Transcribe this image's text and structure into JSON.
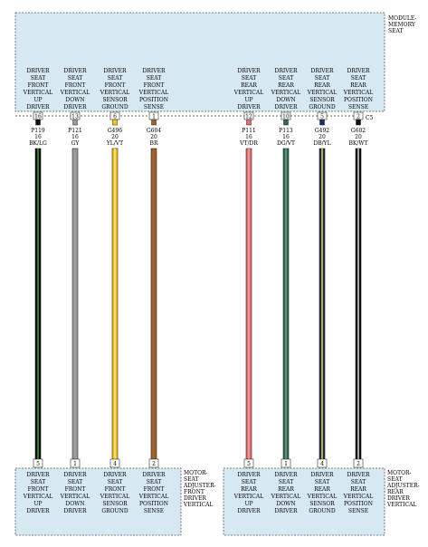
{
  "module": {
    "name_line1": "MODULE-",
    "name_line2": "MEMORY",
    "name_line3": "SEAT",
    "connector": "C5",
    "pins_left": [
      {
        "pin": "16",
        "lines": [
          "DRIVER",
          "SEAT",
          "FRONT",
          "VERTICAL",
          "UP",
          "DRIVER"
        ]
      },
      {
        "pin": "13",
        "lines": [
          "DRIVER",
          "SEAT",
          "FRONT",
          "VERTICAL",
          "DOWN",
          "DRIVER"
        ]
      },
      {
        "pin": "6",
        "lines": [
          "DRIVER",
          "SEAT",
          "FRONT",
          "VERTICAL",
          "SENSOR",
          "GROUND"
        ]
      },
      {
        "pin": "1",
        "lines": [
          "DRIVER",
          "SEAT",
          "FRONT",
          "VERTICAL",
          "POSITION",
          "SENSE"
        ]
      }
    ],
    "pins_right": [
      {
        "pin": "12",
        "lines": [
          "DRIVER",
          "SEAT",
          "REAR",
          "VERTICAL",
          "UP",
          "DRIVER"
        ]
      },
      {
        "pin": "10",
        "lines": [
          "DRIVER",
          "SEAT",
          "REAR",
          "VERTICAL",
          "DOWN",
          "DRIVER"
        ]
      },
      {
        "pin": "5",
        "lines": [
          "DRIVER",
          "SEAT",
          "REAR",
          "VERTICAL",
          "SENSOR",
          "GROUND"
        ]
      },
      {
        "pin": "2",
        "lines": [
          "DRIVER",
          "SEAT",
          "REAR",
          "VERTICAL",
          "POSITION",
          "SENSE"
        ]
      }
    ]
  },
  "wires": [
    {
      "circuit": "P119",
      "gauge": "16",
      "color_code": "BK/LG",
      "base": "#111111",
      "stripe": "#3a9a3a"
    },
    {
      "circuit": "P121",
      "gauge": "16",
      "color_code": "GY",
      "base": "#9a9a9a",
      "stripe": "#9a9a9a"
    },
    {
      "circuit": "G496",
      "gauge": "20",
      "color_code": "YL/VT",
      "base": "#f2c21a",
      "stripe": "#f6e08a"
    },
    {
      "circuit": "G604",
      "gauge": "20",
      "color_code": "BR",
      "base": "#a0622a",
      "stripe": "#a0622a"
    },
    {
      "circuit": "P111",
      "gauge": "16",
      "color_code": "VT/DR",
      "base": "#e07070",
      "stripe": "#f0a0a0"
    },
    {
      "circuit": "P113",
      "gauge": "16",
      "color_code": "DG/VT",
      "base": "#2f6b50",
      "stripe": "#6a9a86"
    },
    {
      "circuit": "G492",
      "gauge": "20",
      "color_code": "DB/YL",
      "base": "#1b2f6b",
      "stripe": "#f2c21a"
    },
    {
      "circuit": "G602",
      "gauge": "20",
      "color_code": "BK/WT",
      "base": "#111111",
      "stripe": "#cccccc"
    }
  ],
  "motor_front": {
    "name_lines": [
      "MOTOR-",
      "SEAT",
      "ADJUSTER-",
      "FRONT",
      "DRIVER",
      "VERTICAL"
    ],
    "pins": [
      {
        "pin": "5",
        "lines": [
          "DRIVER",
          "SEAT",
          "FRONT",
          "VERTICAL",
          "UP",
          "DRIVER"
        ]
      },
      {
        "pin": "1",
        "lines": [
          "DRIVER",
          "SEAT",
          "FRONT",
          "VERTICAL",
          "DOWN",
          "DRIVER"
        ]
      },
      {
        "pin": "4",
        "lines": [
          "DRIVER",
          "SEAT",
          "FRONT",
          "VERTICAL",
          "SENSOR",
          "GROUND"
        ]
      },
      {
        "pin": "2",
        "lines": [
          "DRIVER",
          "SEAT",
          "FRONT",
          "VERTICAL",
          "POSITION",
          "SENSE"
        ]
      }
    ]
  },
  "motor_rear": {
    "name_lines": [
      "MOTOR-",
      "SEAT",
      "ADJUSTER-",
      "REAR",
      "DRIVER",
      "VERTICAL"
    ],
    "pins": [
      {
        "pin": "5",
        "lines": [
          "DRIVER",
          "SEAT",
          "REAR",
          "VERTICAL",
          "UP",
          "DRIVER"
        ]
      },
      {
        "pin": "1",
        "lines": [
          "DRIVER",
          "SEAT",
          "REAR",
          "VERTICAL",
          "DOWN",
          "DRIVER"
        ]
      },
      {
        "pin": "4",
        "lines": [
          "DRIVER",
          "SEAT",
          "REAR",
          "VERTICAL",
          "SENSOR",
          "GROUND"
        ]
      },
      {
        "pin": "2",
        "lines": [
          "DRIVER",
          "SEAT",
          "REAR",
          "VERTICAL",
          "POSITION",
          "SENSE"
        ]
      }
    ]
  },
  "colors": {
    "box_fill": "#d6e8f2",
    "box_stroke": "#555555"
  }
}
